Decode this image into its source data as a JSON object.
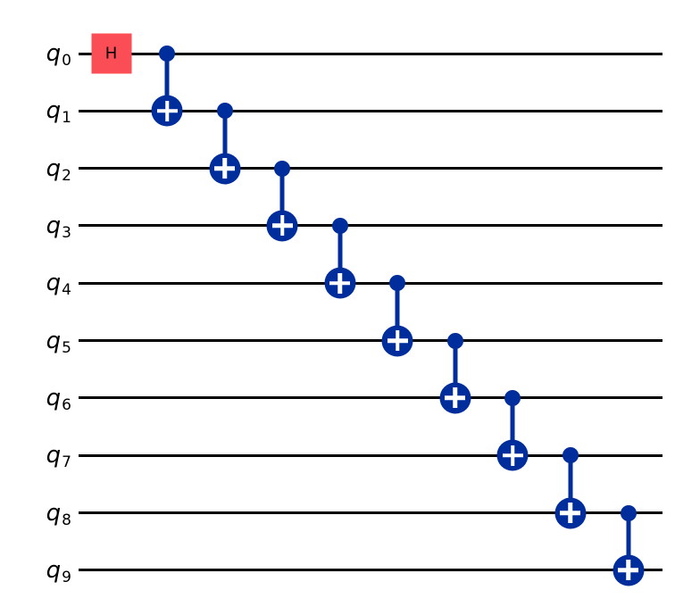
{
  "figure": {
    "type": "quantum-circuit-diagram",
    "description": "10-qubit GHZ state preparation circuit: Hadamard on q0 followed by a cascade of CNOT gates",
    "background": "#ffffff"
  },
  "palette": {
    "wire_color": "#000000",
    "h_gate_fill": "#FA4D56",
    "h_gate_text": "#000000",
    "cx_gate_fill": "#002D9C",
    "target_plus_color": "#ffffff"
  },
  "circuit": {
    "num_qubits": 10,
    "qubits": [
      {
        "name": "q",
        "index": "0"
      },
      {
        "name": "q",
        "index": "1"
      },
      {
        "name": "q",
        "index": "2"
      },
      {
        "name": "q",
        "index": "3"
      },
      {
        "name": "q",
        "index": "4"
      },
      {
        "name": "q",
        "index": "5"
      },
      {
        "name": "q",
        "index": "6"
      },
      {
        "name": "q",
        "index": "7"
      },
      {
        "name": "q",
        "index": "8"
      },
      {
        "name": "q",
        "index": "9"
      }
    ],
    "gates": [
      {
        "type": "h",
        "label": "H",
        "qubit": 0
      },
      {
        "type": "cx",
        "control": 0,
        "target": 1
      },
      {
        "type": "cx",
        "control": 1,
        "target": 2
      },
      {
        "type": "cx",
        "control": 2,
        "target": 3
      },
      {
        "type": "cx",
        "control": 3,
        "target": 4
      },
      {
        "type": "cx",
        "control": 4,
        "target": 5
      },
      {
        "type": "cx",
        "control": 5,
        "target": 6
      },
      {
        "type": "cx",
        "control": 6,
        "target": 7
      },
      {
        "type": "cx",
        "control": 7,
        "target": 8
      },
      {
        "type": "cx",
        "control": 8,
        "target": 9
      }
    ]
  }
}
